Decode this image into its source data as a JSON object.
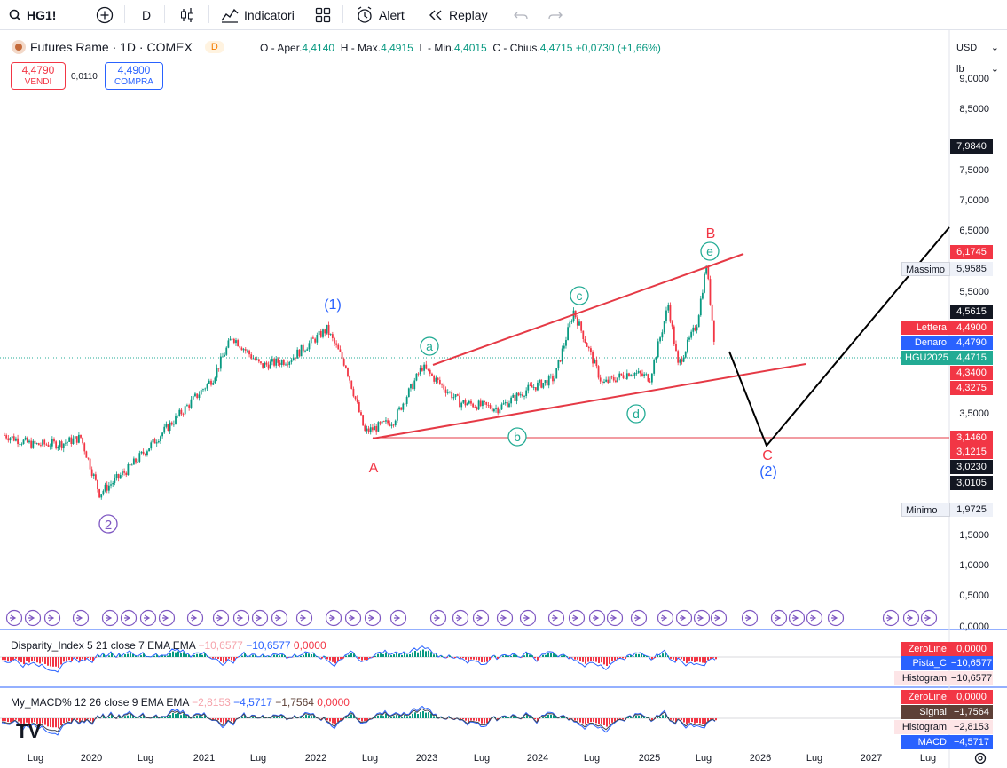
{
  "toolbar": {
    "symbol": "HG1!",
    "interval": "D",
    "indicators_label": "Indicatori",
    "alert_label": "Alert",
    "replay_label": "Replay"
  },
  "legend": {
    "title": "Futures Rame · 1D · COMEX",
    "badge": "D",
    "o_label": "O - Aper.",
    "o_value": "4,4140",
    "h_label": "H - Max.",
    "h_value": "4,4915",
    "l_label": "L - Min.",
    "l_value": "4,4015",
    "c_label": "C - Chius.",
    "c_value": "4,4715",
    "change": "+0,0730 (+1,66%)"
  },
  "trade": {
    "sell_price": "4,4790",
    "sell_label": "VENDI",
    "spread": "0,0110",
    "buy_price": "4,4900",
    "buy_label": "COMPRA"
  },
  "units": {
    "currency": "USD",
    "weight": "lb"
  },
  "price_axis": [
    "9,0000",
    "8,5000",
    "7,5000",
    "7,0000",
    "6,5000",
    "5,5000",
    "3,5000",
    "1,5000",
    "1,0000",
    "0,5000",
    "0,0000"
  ],
  "price_tags": {
    "t7984": "7,9840",
    "t6174": "6,1745",
    "massimo_label": "Massimo",
    "massimo_value": "5,9585",
    "t4561": "4,5615",
    "lettera_label": "Lettera",
    "lettera_value": "4,4900",
    "denaro_label": "Denaro",
    "denaro_value": "4,4790",
    "hgu_label": "HGU2025",
    "hgu_value": "4,4715",
    "t4340": "4,3400",
    "t4327": "4,3275",
    "t3146": "3,1460",
    "t3121": "3,1215",
    "t3023": "3,0230",
    "t3010": "3,0105",
    "minimo_label": "Minimo",
    "minimo_value": "1,9725"
  },
  "wave_labels": {
    "w1": "(1)",
    "w2": "2",
    "wA": "A",
    "wa": "a",
    "wb": "b",
    "wc": "c",
    "wd": "d",
    "we": "e",
    "wB": "B",
    "wC": "C",
    "w2paren": "(2)"
  },
  "disparity": {
    "title": "Disparity_Index 5 21 close 7 EMA EMA",
    "v1": "−10,6577",
    "v2": "−10,6577",
    "v3": "0,0000",
    "zeroline_label": "ZeroLine",
    "zeroline_value": "0,0000",
    "pista_label": "Pista_C",
    "pista_value": "−10,6577",
    "hist_label": "Histogram",
    "hist_value": "−10,6577"
  },
  "macd": {
    "title": "My_MACD% 12 26 close 9 EMA EMA",
    "v1": "−2,8153",
    "v2": "−4,5717",
    "v3": "−1,7564",
    "v4": "0,0000",
    "zeroline_label": "ZeroLine",
    "zeroline_value": "0,0000",
    "signal_label": "Signal",
    "signal_value": "−1,7564",
    "hist_label": "Histogram",
    "hist_value": "−2,8153",
    "macd_label": "MACD",
    "macd_value": "−4,5717"
  },
  "time_axis": [
    "Lug",
    "2020",
    "Lug",
    "2021",
    "Lug",
    "2022",
    "Lug",
    "2023",
    "Lug",
    "2024",
    "Lug",
    "2025",
    "Lug",
    "2026",
    "Lug",
    "2027",
    "Lug"
  ],
  "colors": {
    "up": "#089981",
    "down": "#f23645",
    "blue": "#2962ff",
    "purple": "#7e57c2",
    "teal": "#22ab94",
    "red_line": "#e53945"
  },
  "chart_data": {
    "type": "candlestick",
    "symbol": "HG1!",
    "ylim": [
      0,
      9.2
    ],
    "price_path": [
      {
        "x": "2019-05",
        "y": 3.16
      },
      {
        "x": "2019-08",
        "y": 3.0
      },
      {
        "x": "2019-11",
        "y": 3.02
      },
      {
        "x": "2020-01",
        "y": 3.12
      },
      {
        "x": "2020-03",
        "y": 2.2
      },
      {
        "x": "2020-06",
        "y": 2.6
      },
      {
        "x": "2020-09",
        "y": 3.1
      },
      {
        "x": "2020-12",
        "y": 3.6
      },
      {
        "x": "2021-03",
        "y": 4.1
      },
      {
        "x": "2021-05",
        "y": 4.78
      },
      {
        "x": "2021-08",
        "y": 4.3
      },
      {
        "x": "2021-11",
        "y": 4.4
      },
      {
        "x": "2022-03",
        "y": 4.9
      },
      {
        "x": "2022-05",
        "y": 4.3
      },
      {
        "x": "2022-07",
        "y": 3.21
      },
      {
        "x": "2022-10",
        "y": 3.4
      },
      {
        "x": "2023-01",
        "y": 4.28
      },
      {
        "x": "2023-05",
        "y": 3.7
      },
      {
        "x": "2023-09",
        "y": 3.6
      },
      {
        "x": "2023-12",
        "y": 3.9
      },
      {
        "x": "2024-03",
        "y": 4.1
      },
      {
        "x": "2024-05",
        "y": 5.2
      },
      {
        "x": "2024-08",
        "y": 4.0
      },
      {
        "x": "2024-11",
        "y": 4.2
      },
      {
        "x": "2025-01",
        "y": 4.1
      },
      {
        "x": "2025-03",
        "y": 5.3
      },
      {
        "x": "2025-04",
        "y": 4.3
      },
      {
        "x": "2025-06",
        "y": 5.0
      },
      {
        "x": "2025-07",
        "y": 5.9585
      },
      {
        "x": "2025-08",
        "y": 4.4715
      }
    ],
    "max": 5.9585,
    "min": 1.9725,
    "last": 4.4715
  }
}
